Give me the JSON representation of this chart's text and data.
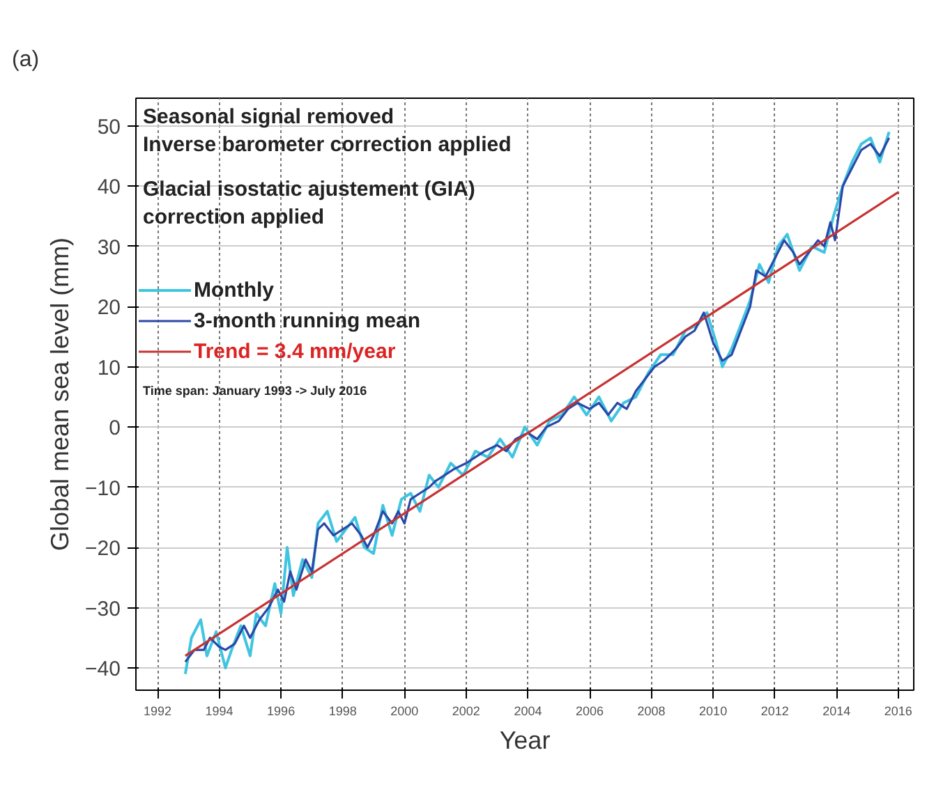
{
  "chart_data": {
    "type": "line",
    "xlabel": "Year",
    "ylabel": "Global mean sea level (mm)",
    "annotations": [
      "(a)",
      "Seasonal signal removed",
      "Inverse barometer correction applied",
      "Glacial isostatic ajustement (GIA) correction applied",
      "Time span: January 1993 -> July 2016"
    ],
    "xlim": [
      1991.3,
      2016.5
    ],
    "ylim": [
      -43.7,
      54.6
    ],
    "xticks": [
      1992,
      1994,
      1996,
      1998,
      2000,
      2002,
      2004,
      2006,
      2008,
      2010,
      2012,
      2014,
      2016
    ],
    "yticks": [
      -40,
      -30,
      -20,
      -10,
      0,
      10,
      20,
      30,
      40,
      50
    ],
    "grid": true,
    "legend": "top left",
    "marker": "none",
    "line_style": "solid",
    "series": [
      {
        "name": "Monthly",
        "color": "#40c4e0",
        "x": [
          1992.9,
          1993.1,
          1993.4,
          1993.6,
          1993.9,
          1994.2,
          1994.4,
          1994.7,
          1995.0,
          1995.2,
          1995.5,
          1995.8,
          1996.0,
          1996.2,
          1996.4,
          1996.7,
          1997.0,
          1997.2,
          1997.5,
          1997.8,
          1998.1,
          1998.4,
          1998.7,
          1999.0,
          1999.3,
          1999.6,
          1999.9,
          2000.2,
          2000.5,
          2000.8,
          2001.1,
          2001.5,
          2001.9,
          2002.3,
          2002.7,
          2003.1,
          2003.5,
          2003.9,
          2004.3,
          2004.7,
          2005.1,
          2005.5,
          2005.9,
          2006.3,
          2006.7,
          2007.1,
          2007.5,
          2007.9,
          2008.3,
          2008.7,
          2009.1,
          2009.5,
          2009.8,
          2010.1,
          2010.3,
          2010.6,
          2010.9,
          2011.2,
          2011.5,
          2011.8,
          2012.1,
          2012.4,
          2012.8,
          2013.2,
          2013.6,
          2013.9,
          2014.2,
          2014.5,
          2014.8,
          2015.1,
          2015.4,
          2015.7
        ],
        "values": [
          -41,
          -35,
          -32,
          -38,
          -34,
          -40,
          -37,
          -33,
          -38,
          -31,
          -33,
          -26,
          -31,
          -20,
          -28,
          -22,
          -25,
          -16,
          -14,
          -19,
          -17,
          -15,
          -20,
          -21,
          -13,
          -18,
          -12,
          -11,
          -14,
          -8,
          -10,
          -6,
          -8,
          -4,
          -5,
          -2,
          -5,
          0,
          -3,
          1,
          2,
          5,
          2,
          5,
          1,
          4,
          5,
          9,
          12,
          12,
          16,
          17,
          19,
          14,
          10,
          13,
          17,
          21,
          27,
          24,
          30,
          32,
          26,
          30,
          29,
          35,
          40,
          44,
          47,
          48,
          44,
          49
        ]
      },
      {
        "name": "3-month running mean",
        "color": "#2a48a8",
        "x": [
          1992.9,
          1993.2,
          1993.5,
          1993.7,
          1994.0,
          1994.2,
          1994.5,
          1994.8,
          1995.0,
          1995.3,
          1995.6,
          1995.9,
          1996.1,
          1996.3,
          1996.5,
          1996.8,
          1997.0,
          1997.2,
          1997.4,
          1997.7,
          1998.0,
          1998.3,
          1998.6,
          1998.8,
          1999.0,
          1999.3,
          1999.6,
          1999.8,
          2000.0,
          2000.2,
          2000.5,
          2000.8,
          2001.0,
          2001.3,
          2001.6,
          2002.0,
          2002.3,
          2002.6,
          2003.0,
          2003.3,
          2003.6,
          2004.0,
          2004.3,
          2004.6,
          2005.0,
          2005.3,
          2005.6,
          2006.0,
          2006.3,
          2006.6,
          2006.9,
          2007.2,
          2007.5,
          2007.8,
          2008.1,
          2008.4,
          2008.8,
          2009.1,
          2009.4,
          2009.7,
          2010.0,
          2010.3,
          2010.6,
          2010.9,
          2011.2,
          2011.4,
          2011.7,
          2012.0,
          2012.3,
          2012.6,
          2012.8,
          2013.1,
          2013.4,
          2013.6,
          2013.8,
          2013.95,
          2014.2,
          2014.5,
          2014.8,
          2015.1,
          2015.4,
          2015.7
        ],
        "values": [
          -39,
          -37,
          -37,
          -35,
          -36.5,
          -37,
          -36,
          -33,
          -35,
          -32,
          -30,
          -27,
          -29,
          -24,
          -27,
          -22,
          -24,
          -17,
          -16,
          -18,
          -17,
          -16,
          -18,
          -20,
          -18,
          -14,
          -16,
          -14,
          -16,
          -12,
          -11,
          -10,
          -9,
          -8,
          -7,
          -6,
          -5,
          -4,
          -3,
          -4,
          -2,
          -1,
          -2,
          0,
          1,
          3,
          4,
          3,
          4,
          2,
          4,
          3,
          6,
          8,
          10,
          11,
          13,
          15,
          16,
          19,
          14,
          11,
          12,
          16,
          20,
          26,
          25,
          28,
          31,
          29,
          27,
          29,
          31,
          30,
          34,
          31,
          40,
          43,
          46,
          47,
          45,
          48
        ]
      },
      {
        "name": "Trend = 3.4 mm/year",
        "color": "#c83232",
        "x": [
          1992.9,
          2016.0
        ],
        "values": [
          -38,
          39
        ]
      }
    ]
  }
}
